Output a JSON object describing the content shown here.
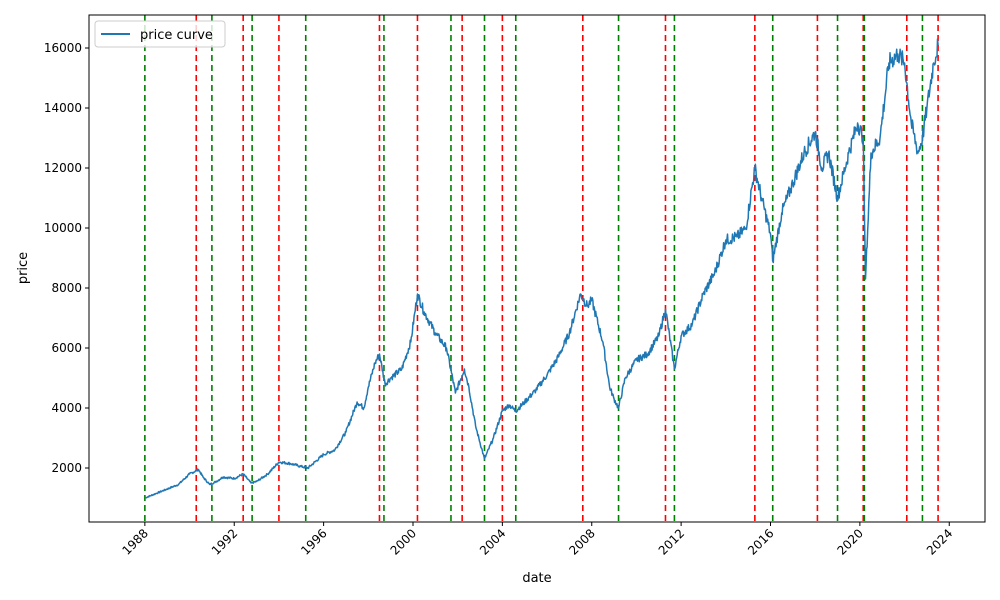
{
  "chart_data": {
    "type": "line",
    "xlabel": "date",
    "ylabel": "price",
    "xlim": [
      1985.5,
      2025.6
    ],
    "ylim": [
      200,
      17100
    ],
    "x_ticks": [
      "1988",
      "1992",
      "1996",
      "2000",
      "2004",
      "2008",
      "2012",
      "2016",
      "2020",
      "2024"
    ],
    "y_ticks": [
      "2000",
      "4000",
      "6000",
      "8000",
      "10000",
      "12000",
      "14000",
      "16000"
    ],
    "grid": false,
    "legend": {
      "position": "top-left",
      "entries": [
        "price curve"
      ]
    },
    "series": [
      {
        "name": "price curve",
        "color": "#1f77b4",
        "x": [
          1988.0,
          1988.5,
          1989.0,
          1989.5,
          1990.0,
          1990.4,
          1990.6,
          1990.9,
          1991.2,
          1991.5,
          1992.0,
          1992.4,
          1992.75,
          1993.0,
          1993.5,
          1994.0,
          1994.5,
          1995.0,
          1995.3,
          1996.0,
          1996.5,
          1997.0,
          1997.5,
          1997.8,
          1998.0,
          1998.3,
          1998.5,
          1998.75,
          1999.0,
          1999.5,
          1999.9,
          2000.2,
          2000.5,
          2001.0,
          2001.5,
          2001.9,
          2002.3,
          2002.5,
          2002.8,
          2003.2,
          2003.6,
          2004.0,
          2004.3,
          2004.6,
          2005.0,
          2005.5,
          2006.0,
          2006.5,
          2007.0,
          2007.5,
          2007.8,
          2008.0,
          2008.5,
          2008.8,
          2009.0,
          2009.2,
          2009.5,
          2010.0,
          2010.5,
          2011.0,
          2011.3,
          2011.7,
          2012.0,
          2012.5,
          2013.0,
          2013.5,
          2014.0,
          2014.5,
          2014.9,
          2015.3,
          2015.6,
          2016.0,
          2016.1,
          2016.5,
          2017.0,
          2017.5,
          2018.0,
          2018.3,
          2018.6,
          2019.0,
          2019.5,
          2019.9,
          2020.15,
          2020.25,
          2020.5,
          2020.9,
          2021.3,
          2021.7,
          2022.0,
          2022.3,
          2022.6,
          2022.8,
          2023.0,
          2023.3,
          2023.5
        ],
        "values": [
          1000,
          1150,
          1300,
          1450,
          1800,
          1950,
          1700,
          1450,
          1550,
          1700,
          1650,
          1800,
          1500,
          1550,
          1800,
          2200,
          2150,
          2050,
          2000,
          2450,
          2600,
          3200,
          4200,
          4000,
          4700,
          5500,
          5800,
          4800,
          5000,
          5300,
          6200,
          7800,
          7200,
          6500,
          6000,
          4500,
          5300,
          4700,
          3400,
          2300,
          3000,
          3900,
          4100,
          3900,
          4200,
          4600,
          5100,
          5700,
          6500,
          7800,
          7400,
          7600,
          6200,
          4700,
          4300,
          4000,
          5000,
          5600,
          5800,
          6400,
          7300,
          5300,
          6400,
          6800,
          7800,
          8500,
          9600,
          9700,
          10000,
          12000,
          11000,
          9800,
          8900,
          10500,
          11500,
          12500,
          13200,
          12000,
          12500,
          11000,
          12500,
          13500,
          13000,
          8300,
          12500,
          13000,
          15500,
          15800,
          15500,
          13500,
          12500,
          13000,
          14000,
          15500,
          16100
        ]
      }
    ],
    "vertical_lines": {
      "red": [
        1990.3,
        1992.4,
        1994.0,
        1998.5,
        2000.2,
        2002.2,
        2004.0,
        2007.6,
        2011.3,
        2015.3,
        2018.1,
        2020.15,
        2022.1,
        2023.5
      ],
      "green": [
        1988.0,
        1991.0,
        1992.8,
        1995.2,
        1998.7,
        2001.7,
        2003.2,
        2004.6,
        2009.2,
        2011.7,
        2016.1,
        2019.0,
        2020.2,
        2022.8
      ]
    }
  }
}
